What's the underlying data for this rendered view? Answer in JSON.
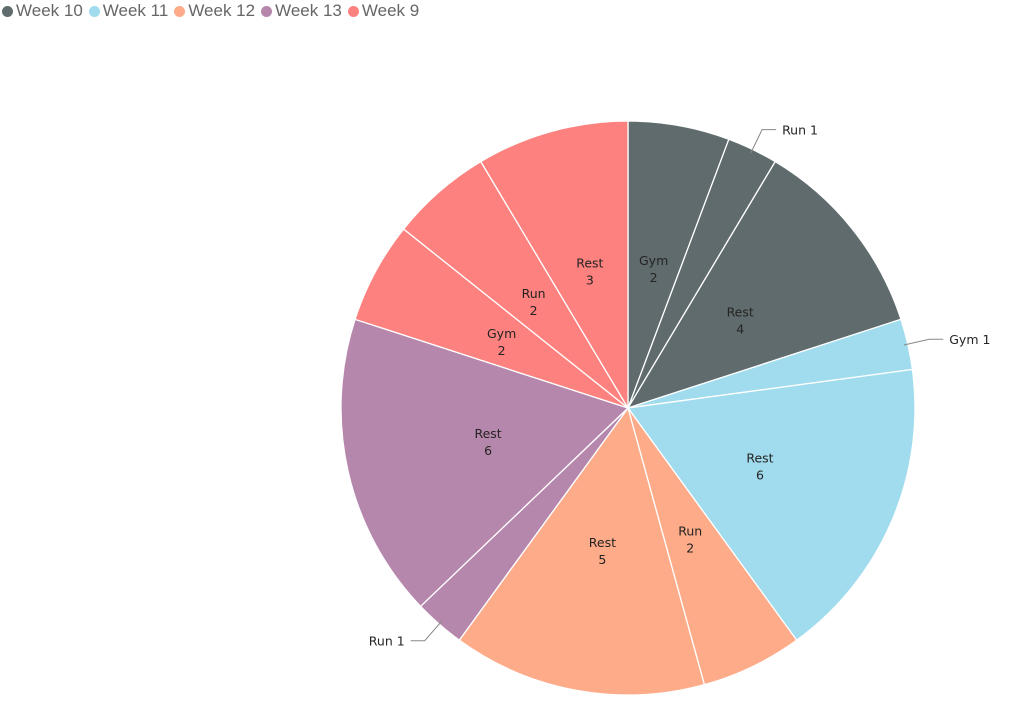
{
  "chart_data": {
    "type": "pie",
    "title": "",
    "legend": {
      "position": "top-left",
      "entries": [
        {
          "name": "Week 10",
          "color": "#5F6B6D"
        },
        {
          "name": "Week 11",
          "color": "#A0DCEE"
        },
        {
          "name": "Week 12",
          "color": "#FDAB89"
        },
        {
          "name": "Week 13",
          "color": "#B687AC"
        },
        {
          "name": "Week 9",
          "color": "#FD817E"
        }
      ]
    },
    "slices": [
      {
        "group": "Week 10",
        "label": "Gym",
        "value": 2
      },
      {
        "group": "Week 10",
        "label": "Run",
        "value": 1
      },
      {
        "group": "Week 10",
        "label": "Rest",
        "value": 4
      },
      {
        "group": "Week 11",
        "label": "Gym",
        "value": 1
      },
      {
        "group": "Week 11",
        "label": "Rest",
        "value": 6
      },
      {
        "group": "Week 12",
        "label": "Run",
        "value": 2
      },
      {
        "group": "Week 12",
        "label": "Rest",
        "value": 5
      },
      {
        "group": "Week 13",
        "label": "Run",
        "value": 1
      },
      {
        "group": "Week 13",
        "label": "Rest",
        "value": 6
      },
      {
        "group": "Week 9",
        "label": "Gym",
        "value": 2
      },
      {
        "group": "Week 9",
        "label": "Run",
        "value": 2
      },
      {
        "group": "Week 9",
        "label": "Rest",
        "value": 3
      }
    ]
  }
}
